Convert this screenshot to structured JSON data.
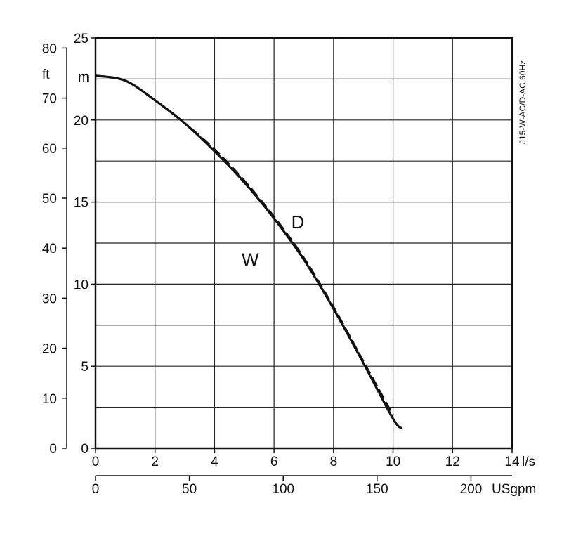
{
  "chart_data": {
    "type": "line",
    "title": "",
    "side_label": "J15-W-AC/D-AC 60Hz",
    "x_axis": {
      "label": "l/s",
      "range": [
        0,
        14
      ],
      "ticks": [
        0,
        2,
        4,
        6,
        8,
        10,
        12,
        14
      ],
      "tick_labels": [
        "0",
        "2",
        "4",
        "6",
        "8",
        "10",
        "12",
        "14"
      ],
      "grid_step": 2
    },
    "x_axis_secondary": {
      "label": "USgpm",
      "ticks": [
        0,
        50,
        100,
        150,
        200
      ],
      "tick_labels": [
        "0",
        "50",
        "100",
        "150",
        "200"
      ]
    },
    "y_axis": {
      "label": "m",
      "range": [
        0,
        25
      ],
      "ticks": [
        0,
        5,
        10,
        15,
        20,
        25
      ],
      "tick_labels": [
        "0",
        "5",
        "10",
        "15",
        "20",
        "25"
      ],
      "grid_step": 2.5
    },
    "y_axis_secondary": {
      "label": "ft",
      "ticks": [
        0,
        10,
        20,
        30,
        40,
        50,
        60,
        70,
        80
      ],
      "tick_labels": [
        "0",
        "10",
        "20",
        "30",
        "40",
        "50",
        "60",
        "70",
        "80"
      ]
    },
    "grid": true,
    "series": [
      {
        "name": "W",
        "style": "solid",
        "color": "#111111",
        "x": [
          0,
          1,
          2,
          3,
          4,
          5,
          6,
          7,
          8,
          9,
          10,
          10.3
        ],
        "y": [
          22.7,
          22.4,
          21.2,
          19.8,
          18.1,
          16.2,
          14.0,
          11.5,
          8.5,
          5.2,
          1.8,
          1.2
        ]
      },
      {
        "name": "D",
        "style": "dashed",
        "color": "#111111",
        "x": [
          0,
          1,
          2,
          3,
          4,
          5,
          6,
          7,
          8,
          9,
          10
        ],
        "y": [
          22.7,
          22.4,
          21.2,
          19.8,
          18.2,
          16.3,
          14.1,
          11.6,
          8.6,
          5.3,
          2.0
        ]
      }
    ],
    "annotations": [
      {
        "text": "D",
        "x": 6.8,
        "y": 13.4
      },
      {
        "text": "W",
        "x": 5.2,
        "y": 11.1
      }
    ]
  }
}
